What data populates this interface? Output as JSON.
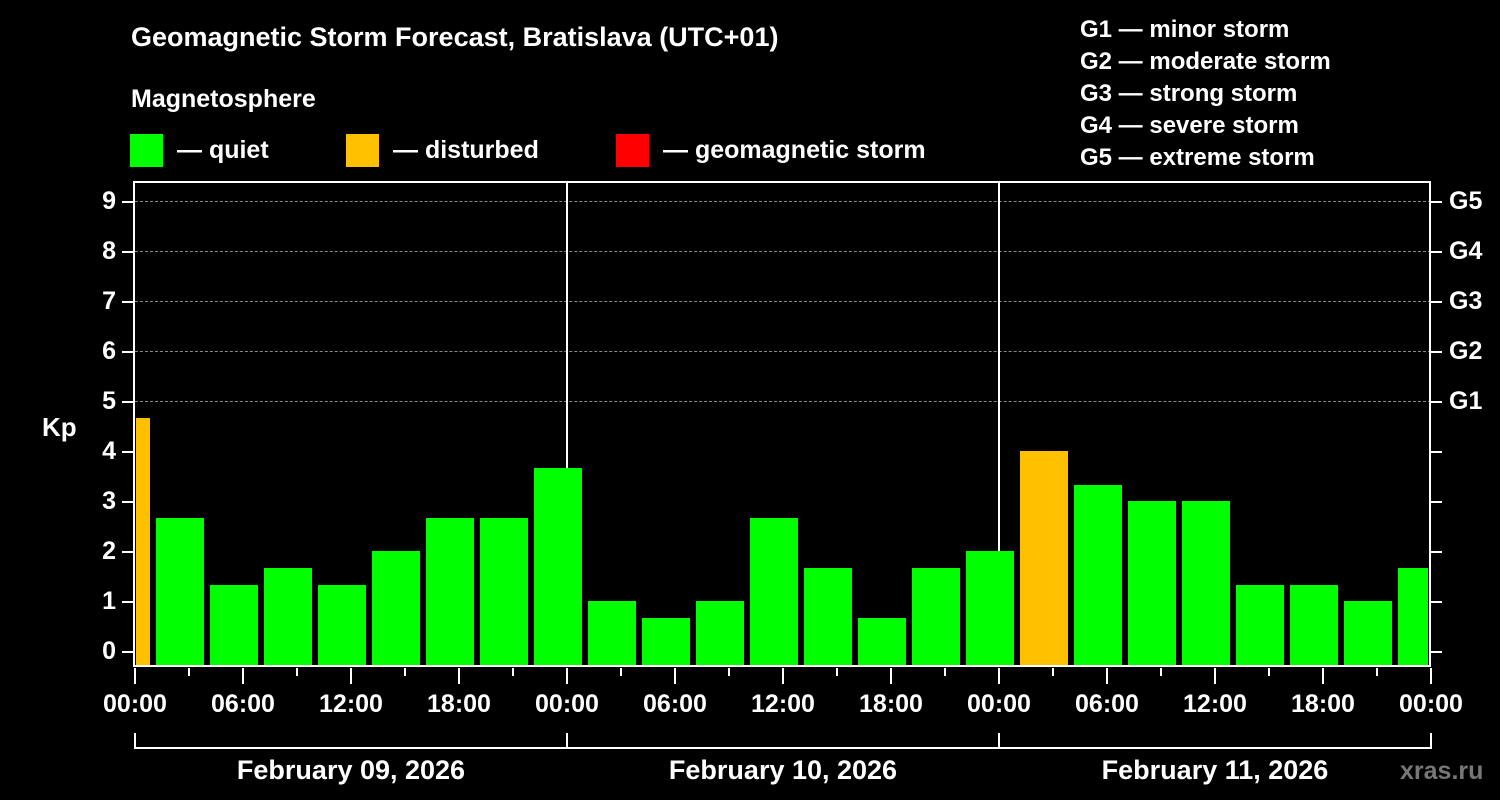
{
  "header": {
    "title": "Geomagnetic Storm Forecast, Bratislava (UTC+01)",
    "subtitle": "Magnetosphere"
  },
  "legend": [
    {
      "label": "— quiet",
      "color": "#00ff00"
    },
    {
      "label": "— disturbed",
      "color": "#ffc000"
    },
    {
      "label": "— geomagnetic storm",
      "color": "#ff0000"
    }
  ],
  "g_scale": [
    "G1 — minor storm",
    "G2 — moderate storm",
    "G3 — strong storm",
    "G4 — severe storm",
    "G5 — extreme storm"
  ],
  "axes": {
    "y_label": "Kp",
    "y_ticks": [
      "0",
      "1",
      "2",
      "3",
      "4",
      "5",
      "6",
      "7",
      "8",
      "9"
    ],
    "g_ticks": [
      "G1",
      "G2",
      "G3",
      "G4",
      "G5"
    ],
    "x_ticks": [
      "00:00",
      "06:00",
      "12:00",
      "18:00",
      "00:00",
      "06:00",
      "12:00",
      "18:00",
      "00:00",
      "06:00",
      "12:00",
      "18:00",
      "00:00"
    ],
    "dates": [
      "February 09, 2026",
      "February 10, 2026",
      "February 11, 2026"
    ]
  },
  "watermark": "xras.ru",
  "chart_data": {
    "type": "bar",
    "title": "Geomagnetic Storm Forecast, Bratislava (UTC+01)",
    "subtitle": "Magnetosphere",
    "xlabel": "",
    "ylabel": "Kp",
    "ylim": [
      0,
      9
    ],
    "secondary_y_ticks": {
      "5": "G1",
      "6": "G2",
      "7": "G3",
      "8": "G4",
      "9": "G5"
    },
    "grid": true,
    "legend_position": "top",
    "categories": [
      "Feb 09 00:00-01:00",
      "Feb 09 01:00-04:00",
      "Feb 09 04:00-07:00",
      "Feb 09 07:00-10:00",
      "Feb 09 10:00-13:00",
      "Feb 09 13:00-16:00",
      "Feb 09 16:00-19:00",
      "Feb 09 19:00-22:00",
      "Feb 09 22:00-01:00",
      "Feb 10 01:00-04:00",
      "Feb 10 04:00-07:00",
      "Feb 10 07:00-10:00",
      "Feb 10 10:00-13:00",
      "Feb 10 13:00-16:00",
      "Feb 10 16:00-19:00",
      "Feb 10 19:00-22:00",
      "Feb 10 22:00-01:00",
      "Feb 11 01:00-04:00",
      "Feb 11 04:00-07:00",
      "Feb 11 07:00-10:00",
      "Feb 11 10:00-13:00",
      "Feb 11 13:00-16:00",
      "Feb 11 16:00-19:00",
      "Feb 11 19:00-22:00",
      "Feb 11 22:00-24:00"
    ],
    "values": [
      4.67,
      2.67,
      1.33,
      1.67,
      1.33,
      2.0,
      2.67,
      2.67,
      3.67,
      1.0,
      0.67,
      1.0,
      2.67,
      1.67,
      0.67,
      1.67,
      2.0,
      4.0,
      3.33,
      3.0,
      3.0,
      1.33,
      1.33,
      1.0,
      1.67
    ],
    "status": [
      "disturbed",
      "quiet",
      "quiet",
      "quiet",
      "quiet",
      "quiet",
      "quiet",
      "quiet",
      "quiet",
      "quiet",
      "quiet",
      "quiet",
      "quiet",
      "quiet",
      "quiet",
      "quiet",
      "quiet",
      "disturbed",
      "quiet",
      "quiet",
      "quiet",
      "quiet",
      "quiet",
      "quiet",
      "quiet"
    ],
    "slots_hours": [
      [
        0,
        1
      ],
      [
        1,
        4
      ],
      [
        4,
        7
      ],
      [
        7,
        10
      ],
      [
        10,
        13
      ],
      [
        13,
        16
      ],
      [
        16,
        19
      ],
      [
        19,
        22
      ],
      [
        22,
        25
      ],
      [
        25,
        28
      ],
      [
        28,
        31
      ],
      [
        31,
        34
      ],
      [
        34,
        37
      ],
      [
        37,
        40
      ],
      [
        40,
        43
      ],
      [
        43,
        46
      ],
      [
        46,
        49
      ],
      [
        49,
        52
      ],
      [
        52,
        55
      ],
      [
        55,
        58
      ],
      [
        58,
        61
      ],
      [
        61,
        64
      ],
      [
        64,
        67
      ],
      [
        67,
        70
      ],
      [
        70,
        72
      ]
    ],
    "status_colors": {
      "quiet": "#00ff00",
      "disturbed": "#ffc000",
      "storm": "#ff0000"
    }
  }
}
